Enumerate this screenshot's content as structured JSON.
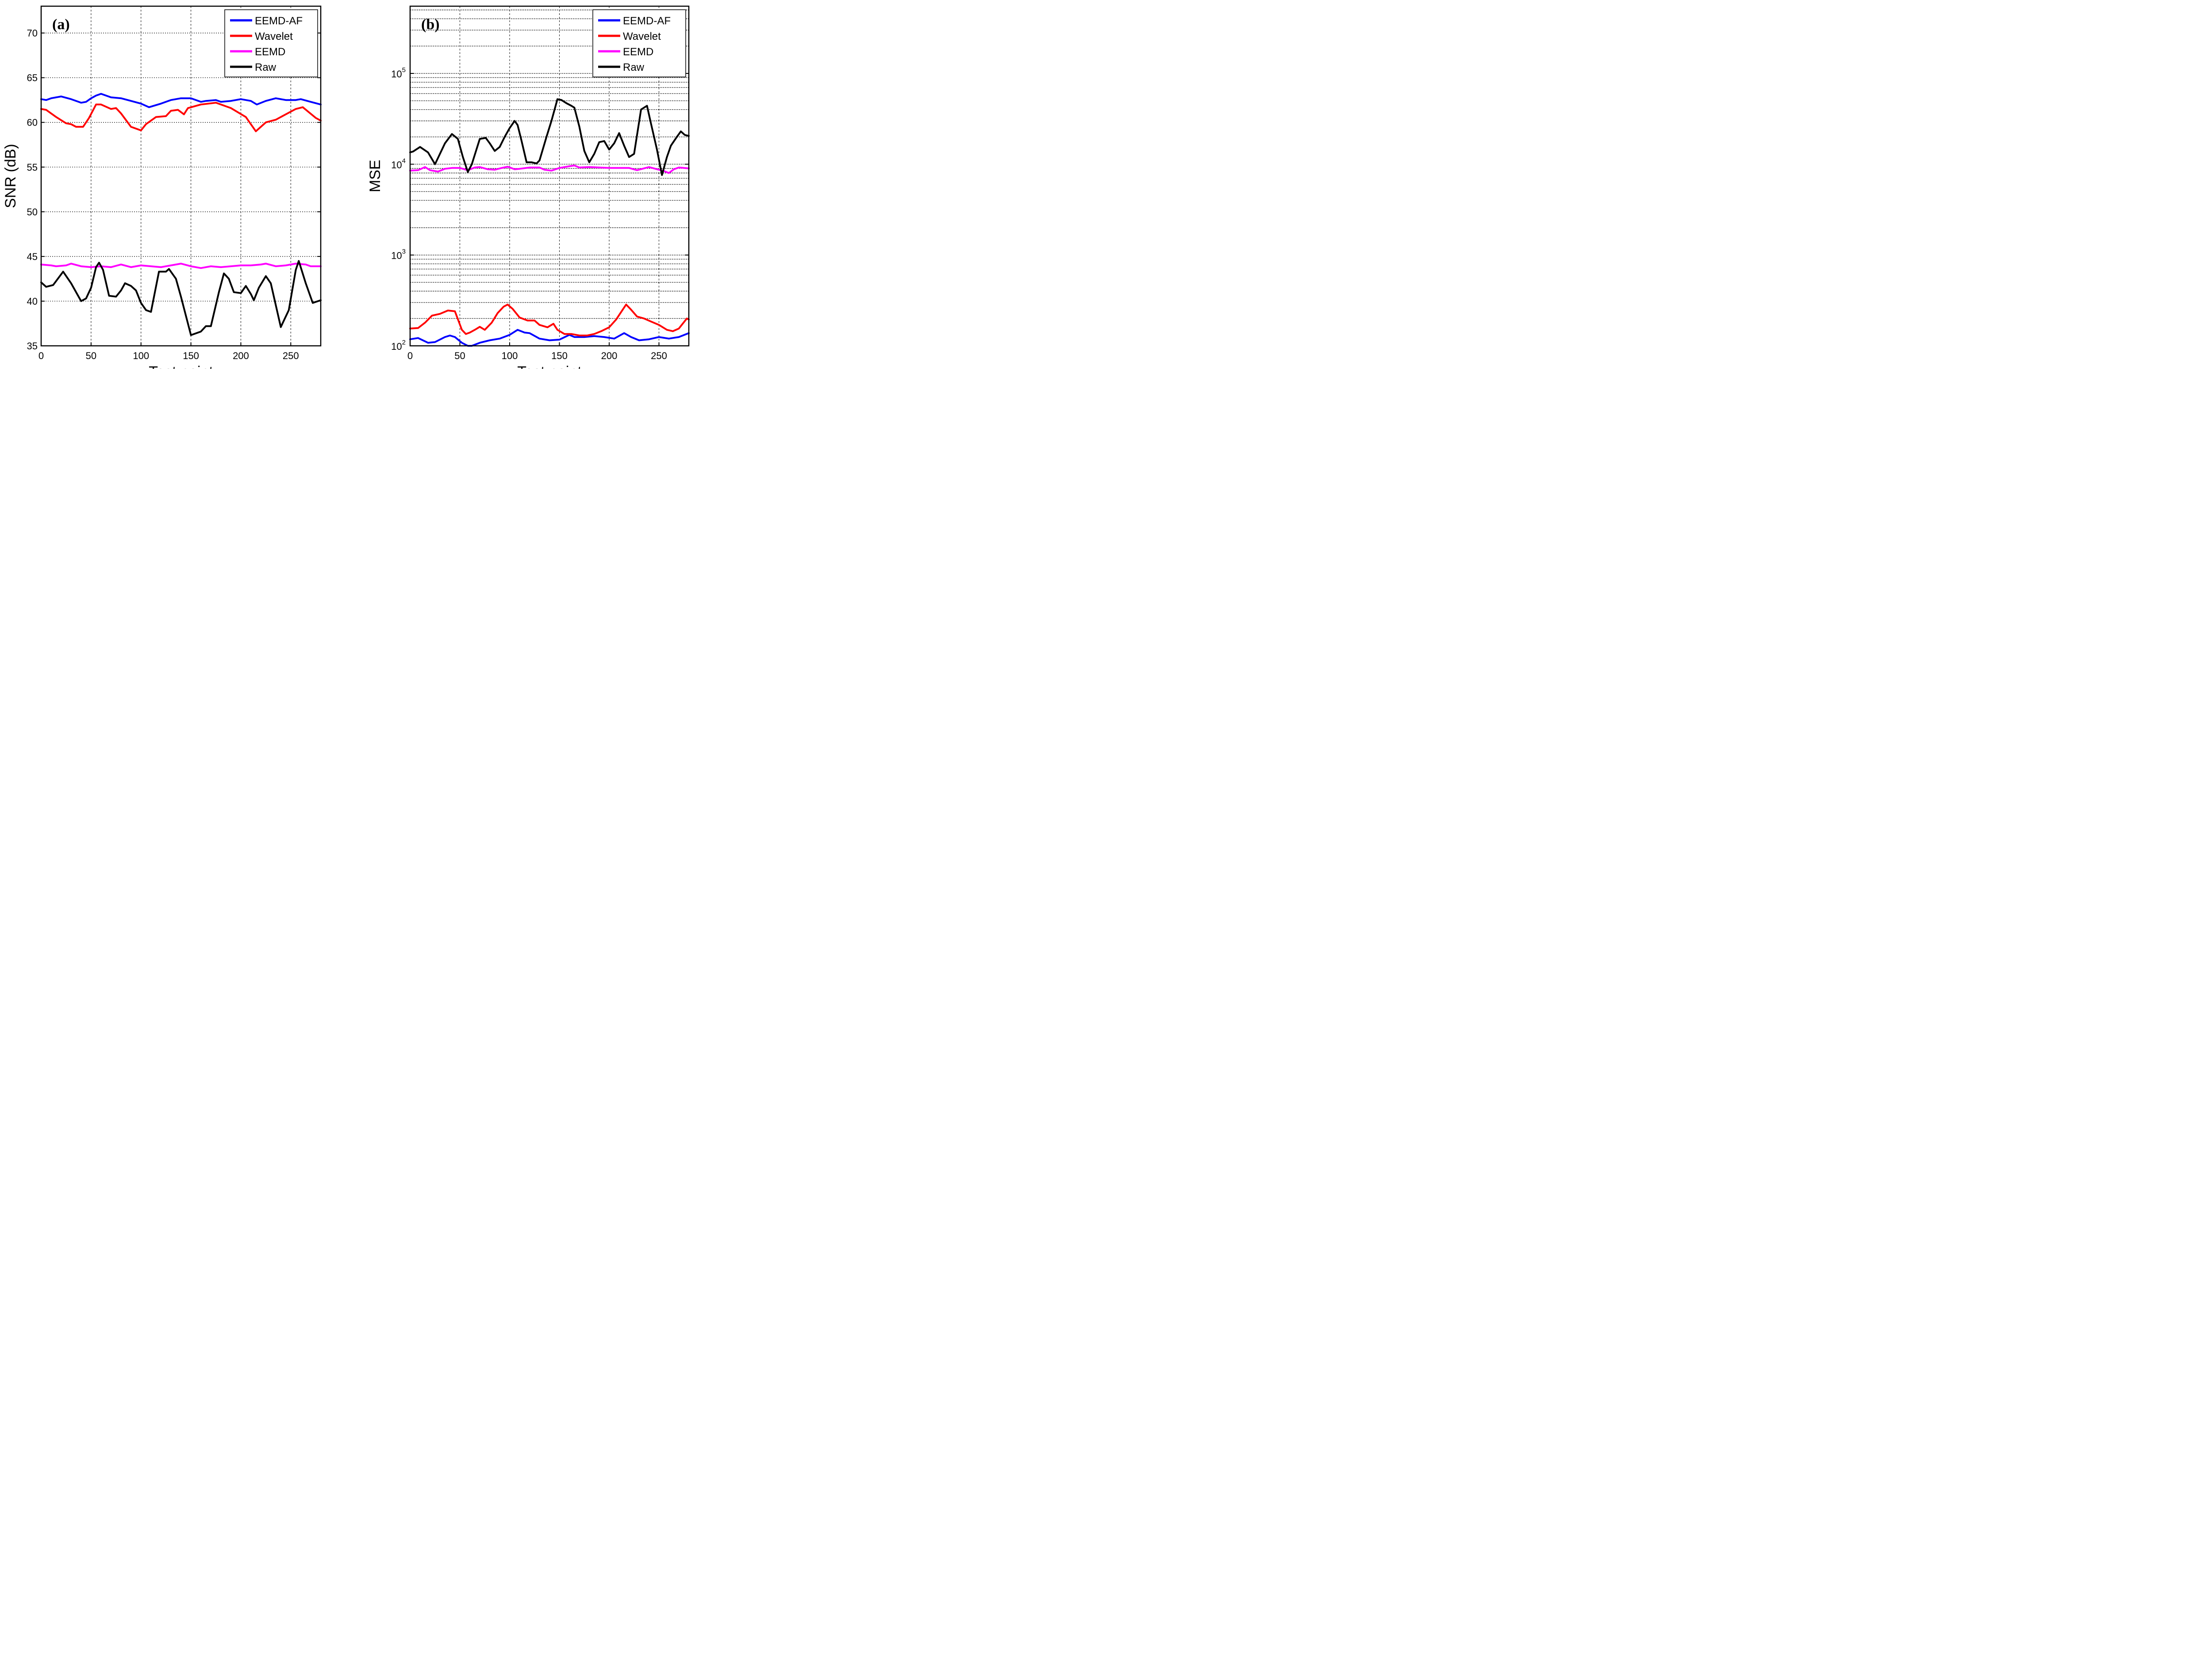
{
  "chart_data": [
    {
      "type": "line",
      "panel_label": "(a)",
      "xlabel": "Test point",
      "ylabel": "SNR (dB)",
      "xlim": [
        0,
        280
      ],
      "ylim": [
        35,
        73
      ],
      "xticks": [
        0,
        50,
        100,
        150,
        200,
        250
      ],
      "yticks": [
        35,
        40,
        45,
        50,
        55,
        60,
        65,
        70
      ],
      "yscale": "linear",
      "grid": true,
      "legend_position": "top-right",
      "series": [
        {
          "name": "EEMD-AF",
          "color": "#0000ff",
          "x": [
            0,
            5,
            10,
            20,
            30,
            40,
            45,
            50,
            55,
            60,
            70,
            80,
            90,
            100,
            108,
            120,
            130,
            140,
            150,
            160,
            165,
            175,
            180,
            190,
            200,
            210,
            216,
            225,
            235,
            245,
            255,
            260,
            270,
            280
          ],
          "values": [
            62.6,
            62.5,
            62.7,
            62.9,
            62.6,
            62.2,
            62.3,
            62.7,
            63.0,
            63.2,
            62.8,
            62.7,
            62.4,
            62.1,
            61.7,
            62.1,
            62.5,
            62.7,
            62.7,
            62.3,
            62.4,
            62.5,
            62.3,
            62.4,
            62.6,
            62.4,
            62.0,
            62.4,
            62.7,
            62.5,
            62.5,
            62.6,
            62.3,
            62.0
          ]
        },
        {
          "name": "Wavelet",
          "color": "#ff0000",
          "x": [
            0,
            5,
            15,
            25,
            30,
            35,
            42,
            48,
            55,
            60,
            70,
            75,
            80,
            90,
            100,
            105,
            115,
            125,
            130,
            137,
            143,
            147,
            160,
            175,
            190,
            205,
            215,
            225,
            235,
            245,
            255,
            262,
            275,
            280
          ],
          "values": [
            61.5,
            61.4,
            60.6,
            59.9,
            59.8,
            59.5,
            59.5,
            60.5,
            62.0,
            62.0,
            61.5,
            61.6,
            61.0,
            59.5,
            59.1,
            59.8,
            60.6,
            60.7,
            61.3,
            61.4,
            60.9,
            61.6,
            62.0,
            62.2,
            61.6,
            60.6,
            59.0,
            60.0,
            60.3,
            60.9,
            61.5,
            61.7,
            60.5,
            60.2
          ]
        },
        {
          "name": "EEMD",
          "color": "#ff00ff",
          "x": [
            0,
            10,
            15,
            25,
            30,
            40,
            50,
            60,
            70,
            80,
            90,
            100,
            110,
            120,
            130,
            140,
            150,
            160,
            170,
            180,
            190,
            200,
            210,
            220,
            225,
            235,
            245,
            255,
            265,
            270,
            280
          ],
          "values": [
            44.1,
            44.0,
            43.9,
            44.0,
            44.2,
            43.9,
            43.8,
            43.9,
            43.8,
            44.1,
            43.8,
            44.0,
            43.9,
            43.8,
            44.0,
            44.2,
            43.9,
            43.7,
            43.9,
            43.8,
            43.9,
            44.0,
            44.0,
            44.1,
            44.2,
            43.9,
            44.0,
            44.2,
            44.1,
            43.9,
            43.9
          ]
        },
        {
          "name": "Raw",
          "color": "#000000",
          "x": [
            0,
            5,
            12,
            22,
            30,
            40,
            45,
            50,
            55,
            58,
            62,
            68,
            75,
            80,
            84,
            90,
            95,
            100,
            105,
            110,
            118,
            125,
            128,
            135,
            140,
            150,
            160,
            165,
            170,
            178,
            183,
            188,
            193,
            200,
            205,
            210,
            213,
            218,
            225,
            230,
            240,
            248,
            255,
            258,
            265,
            272,
            280
          ],
          "values": [
            42.1,
            41.6,
            41.8,
            43.3,
            42.0,
            40.0,
            40.3,
            41.5,
            43.8,
            44.3,
            43.5,
            40.6,
            40.5,
            41.2,
            42.0,
            41.7,
            41.2,
            39.8,
            39.0,
            38.8,
            43.3,
            43.3,
            43.6,
            42.5,
            40.5,
            36.2,
            36.6,
            37.2,
            37.2,
            41.0,
            43.1,
            42.5,
            41.0,
            40.9,
            41.7,
            40.8,
            40.1,
            41.5,
            42.8,
            42.0,
            37.1,
            39.0,
            43.5,
            44.5,
            42.0,
            39.8,
            40.1
          ]
        }
      ]
    },
    {
      "type": "line",
      "panel_label": "(b)",
      "xlabel": "Test point",
      "ylabel": "MSE",
      "xlim": [
        0,
        280
      ],
      "ylim": [
        100,
        550000
      ],
      "xticks": [
        0,
        50,
        100,
        150,
        200,
        250
      ],
      "yticks": [
        {
          "base": "10",
          "exp": "2",
          "value": 100
        },
        {
          "base": "10",
          "exp": "3",
          "value": 1000
        },
        {
          "base": "10",
          "exp": "4",
          "value": 10000
        },
        {
          "base": "10",
          "exp": "5",
          "value": 100000
        }
      ],
      "yscale": "log",
      "grid": true,
      "legend_position": "top-right",
      "series": [
        {
          "name": "EEMD-AF",
          "color": "#0000ff",
          "x": [
            0,
            8,
            18,
            25,
            35,
            40,
            45,
            52,
            58,
            62,
            70,
            80,
            90,
            100,
            108,
            115,
            120,
            130,
            140,
            150,
            160,
            165,
            175,
            185,
            195,
            205,
            215,
            222,
            230,
            240,
            250,
            260,
            270,
            280
          ],
          "values": [
            118,
            122,
            108,
            110,
            125,
            130,
            125,
            108,
            100,
            100,
            108,
            115,
            120,
            132,
            150,
            140,
            138,
            120,
            115,
            117,
            132,
            125,
            125,
            128,
            125,
            120,
            138,
            125,
            115,
            118,
            125,
            120,
            125,
            138
          ]
        },
        {
          "name": "Wavelet",
          "color": "#ff0000",
          "x": [
            0,
            8,
            15,
            22,
            30,
            38,
            45,
            52,
            56,
            60,
            65,
            70,
            75,
            82,
            88,
            94,
            98,
            103,
            110,
            118,
            125,
            130,
            138,
            144,
            148,
            155,
            162,
            170,
            178,
            185,
            192,
            200,
            207,
            213,
            217,
            222,
            228,
            235,
            242,
            250,
            258,
            264,
            270,
            278,
            280
          ],
          "values": [
            155,
            157,
            180,
            215,
            225,
            245,
            240,
            150,
            135,
            140,
            150,
            162,
            150,
            180,
            230,
            270,
            285,
            255,
            205,
            190,
            190,
            170,
            160,
            175,
            150,
            135,
            135,
            130,
            130,
            135,
            145,
            160,
            195,
            245,
            285,
            250,
            210,
            200,
            185,
            170,
            150,
            145,
            155,
            200,
            195
          ]
        },
        {
          "name": "EEMD",
          "color": "#ff00ff",
          "x": [
            0,
            8,
            15,
            20,
            28,
            35,
            42,
            50,
            58,
            65,
            70,
            78,
            85,
            92,
            98,
            105,
            110,
            120,
            130,
            135,
            142,
            150,
            160,
            165,
            170,
            180,
            190,
            200,
            210,
            220,
            228,
            235,
            240,
            250,
            255,
            260,
            265,
            270,
            280
          ],
          "values": [
            8500,
            8600,
            9300,
            8600,
            8300,
            8900,
            9100,
            9100,
            8600,
            9200,
            9300,
            8800,
            8700,
            9100,
            9400,
            8800,
            8900,
            9200,
            9200,
            8700,
            8500,
            9100,
            9500,
            9700,
            9200,
            9300,
            9200,
            9100,
            9100,
            9100,
            8600,
            9000,
            9300,
            8700,
            8400,
            8000,
            8800,
            9200,
            9000
          ]
        },
        {
          "name": "Raw",
          "color": "#000000",
          "x": [
            0,
            3,
            10,
            18,
            25,
            35,
            42,
            48,
            53,
            58,
            62,
            70,
            76,
            80,
            85,
            90,
            95,
            100,
            105,
            108,
            112,
            117,
            122,
            127,
            130,
            137,
            142,
            148,
            152,
            157,
            162,
            165,
            170,
            175,
            180,
            185,
            190,
            195,
            200,
            205,
            210,
            215,
            220,
            225,
            232,
            238,
            242,
            248,
            253,
            258,
            262,
            268,
            272,
            276,
            280
          ],
          "values": [
            13500,
            13800,
            15500,
            13500,
            10000,
            17000,
            21500,
            19000,
            12000,
            8200,
            10000,
            19000,
            19500,
            17000,
            14000,
            15500,
            20000,
            25000,
            30000,
            27000,
            18000,
            10500,
            10500,
            10200,
            11000,
            20000,
            30000,
            52000,
            51000,
            47000,
            44000,
            42000,
            26000,
            14000,
            10500,
            13000,
            17500,
            18000,
            14500,
            17000,
            22000,
            16000,
            12000,
            13000,
            40000,
            44000,
            28000,
            14500,
            7600,
            12000,
            16000,
            20000,
            23000,
            21000,
            20500
          ]
        }
      ]
    }
  ]
}
